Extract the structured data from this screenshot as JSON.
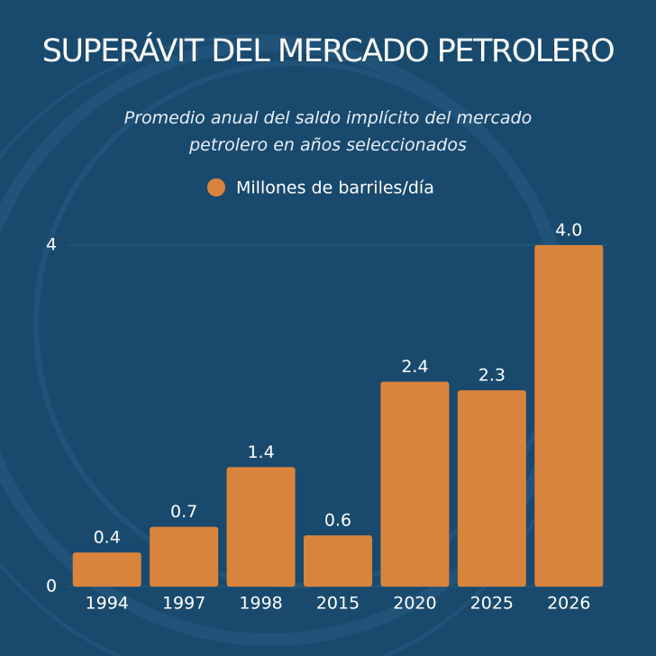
{
  "chart_data": {
    "type": "bar",
    "title": "SUPERÁVIT DEL MERCADO PETROLERO",
    "subtitle": "Promedio anual del saldo implícito del mercado petrolero en años seleccionados",
    "series_name": "Millones de barriles/día",
    "categories": [
      "1994",
      "1997",
      "1998",
      "2015",
      "2020",
      "2025",
      "2026"
    ],
    "values": [
      0.4,
      0.7,
      1.4,
      0.6,
      2.4,
      2.3,
      4.0
    ],
    "value_labels": [
      "0.4",
      "0.7",
      "1.4",
      "0.6",
      "2.4",
      "2.3",
      "4.0"
    ],
    "color": "#d9843d",
    "ylim": [
      0,
      4
    ],
    "yticks": [
      0,
      4
    ],
    "grid": true
  }
}
